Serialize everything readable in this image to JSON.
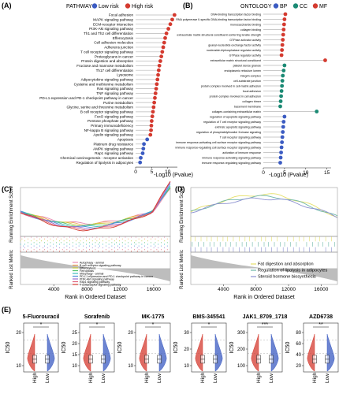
{
  "panels": {
    "A": {
      "label": "(A)",
      "legend_title": "PATHWAY",
      "legend": [
        {
          "name": "Low risk",
          "color": "#3b5bc2"
        },
        {
          "name": "High risk",
          "color": "#d43a2f"
        }
      ],
      "xlabel": "-Log10 (Pvalue)",
      "xticks": [
        "0",
        "5",
        "10"
      ],
      "xlim": [
        0,
        13
      ],
      "labels_visible_as": [
        {
          "name": "Focal adhesion",
          "group": "High risk",
          "value": 12.1
        },
        {
          "name": "MAPK signaling pathway",
          "group": "High risk",
          "value": 11.4
        },
        {
          "name": "ECM-receptor interaction",
          "group": "High risk",
          "value": 10.8
        },
        {
          "name": "PI3K-Akt signaling pathway",
          "group": "High risk",
          "value": 10.2
        },
        {
          "name": "Th1 and Th2 cell differentiation",
          "group": "High risk",
          "value": 9.6
        },
        {
          "name": "Efferocytosis",
          "group": "High risk",
          "value": 9.2
        },
        {
          "name": "Cell adhesion molecules",
          "group": "High risk",
          "value": 8.9
        },
        {
          "name": "Adherens junction",
          "group": "High risk",
          "value": 8.6
        },
        {
          "name": "T cell receptor signaling pathway",
          "group": "High risk",
          "value": 8.3
        },
        {
          "name": "Proteoglycans in cancer",
          "group": "High risk",
          "value": 8.0
        },
        {
          "name": "Protein digestion and absorption",
          "group": "High risk",
          "value": 7.7
        },
        {
          "name": "Fructose and mannose metabolism",
          "group": "High risk",
          "value": 7.4
        },
        {
          "name": "Th17 cell differentiation",
          "group": "High risk",
          "value": 7.2
        },
        {
          "name": "Lysosome",
          "group": "High risk",
          "value": 7.0
        },
        {
          "name": "Adipocytokine signaling pathway",
          "group": "High risk",
          "value": 6.8
        },
        {
          "name": "Cysteine and methionine metabolism",
          "group": "High risk",
          "value": 6.6
        },
        {
          "name": "Ras signaling pathway",
          "group": "High risk",
          "value": 6.4
        },
        {
          "name": "TNF signaling pathway",
          "group": "High risk",
          "value": 6.2
        },
        {
          "name": "PD-L1 expression and PD-1 checkpoint pathway in cancer",
          "group": "High risk",
          "value": 6.0
        },
        {
          "name": "Purine metabolism",
          "group": "High risk",
          "value": 5.8
        },
        {
          "name": "Glycine, serine and threonine metabolism",
          "group": "High risk",
          "value": 5.6
        },
        {
          "name": "B cell receptor signaling pathway",
          "group": "High risk",
          "value": 5.4
        },
        {
          "name": "FoxO signaling pathway",
          "group": "High risk",
          "value": 5.2
        },
        {
          "name": "Pentose phosphate pathway",
          "group": "High risk",
          "value": 5.0
        },
        {
          "name": "Primary immunodeficiency",
          "group": "High risk",
          "value": 4.9
        },
        {
          "name": "NF-kappa B signaling pathway",
          "group": "High risk",
          "value": 4.8
        },
        {
          "name": "Apelin signaling pathway",
          "group": "High risk",
          "value": 4.6
        },
        {
          "name": "Apoptosis",
          "group": "Low risk",
          "value": 3.6
        },
        {
          "name": "Platinum drug resistance",
          "group": "Low risk",
          "value": 2.6
        },
        {
          "name": "AMPK signaling pathway",
          "group": "Low risk",
          "value": 2.4
        },
        {
          "name": "Rap1 signaling pathway",
          "group": "Low risk",
          "value": 2.2
        },
        {
          "name": "Chemical carcinogenesis - receptor activation",
          "group": "Low risk",
          "value": 1.6
        },
        {
          "name": "Regulation of lipolysis in adipocytes",
          "group": "Low risk",
          "value": 1.4
        }
      ]
    },
    "B": {
      "label": "(B)",
      "legend_title": "ONTOLOGY",
      "legend": [
        {
          "name": "BP",
          "color": "#3b5bc2"
        },
        {
          "name": "CC",
          "color": "#1b8a74"
        },
        {
          "name": "MF",
          "color": "#d43a2f"
        }
      ],
      "xlabel": "-Log10 (Pvalue)",
      "xticks": [
        "0",
        "5",
        "10",
        "15"
      ],
      "xlim": [
        0,
        16
      ],
      "terms": [
        {
          "name": "DNA-binding transcription factor binding",
          "group": "MF",
          "value": 5.2
        },
        {
          "name": "RNA polymerase II-specific DNA-binding transcription factor binding",
          "group": "MF",
          "value": 5.0
        },
        {
          "name": "monosaccharide binding",
          "group": "MF",
          "value": 4.9
        },
        {
          "name": "collagen binding",
          "group": "MF",
          "value": 4.8
        },
        {
          "name": "extracellular matrix structural constituent conferring tensile strength",
          "group": "MF",
          "value": 4.7
        },
        {
          "name": "GTPase activator activity",
          "group": "MF",
          "value": 4.6
        },
        {
          "name": "guanyl-nucleotide exchange factor activity",
          "group": "MF",
          "value": 4.5
        },
        {
          "name": "nucleoside-triphosphatase regulator activity",
          "group": "MF",
          "value": 4.4
        },
        {
          "name": "GTPase regulator activity",
          "group": "MF",
          "value": 4.3
        },
        {
          "name": "extracellular matrix structural constituent",
          "group": "MF",
          "value": 14.6
        },
        {
          "name": "platelet dense granule",
          "group": "CC",
          "value": 5.0
        },
        {
          "name": "endoplasmic reticulum lumen",
          "group": "CC",
          "value": 4.8
        },
        {
          "name": "integrin complex",
          "group": "CC",
          "value": 4.6
        },
        {
          "name": "cell-substrate junction",
          "group": "CC",
          "value": 4.5
        },
        {
          "name": "protein complex involved in cell-matrix adhesion",
          "group": "CC",
          "value": 4.4
        },
        {
          "name": "focal adhesion",
          "group": "CC",
          "value": 4.3
        },
        {
          "name": "protein complex involved in cell adhesion",
          "group": "CC",
          "value": 4.2
        },
        {
          "name": "collagen trimer",
          "group": "CC",
          "value": 4.1
        },
        {
          "name": "basement membrane",
          "group": "CC",
          "value": 4.0
        },
        {
          "name": "collagen-containing extracellular matrix",
          "group": "CC",
          "value": 12.6
        },
        {
          "name": "regulation of apoptotic signaling pathway",
          "group": "BP",
          "value": 5.0
        },
        {
          "name": "regulation of T cell receptor signaling pathway",
          "group": "BP",
          "value": 4.8
        },
        {
          "name": "extrinsic apoptotic signaling pathway",
          "group": "BP",
          "value": 4.7
        },
        {
          "name": "regulation of phosphatidylinositol 3-kinase signaling",
          "group": "BP",
          "value": 4.6
        },
        {
          "name": "T cell receptor signaling pathway",
          "group": "BP",
          "value": 4.5
        },
        {
          "name": "immune response-activating cell surface receptor signaling pathway",
          "group": "BP",
          "value": 4.4
        },
        {
          "name": "immune response-regulating cell surface receptor signaling pathway",
          "group": "BP",
          "value": 4.3
        },
        {
          "name": "activation of immune response",
          "group": "BP",
          "value": 4.2
        },
        {
          "name": "immune response-activating signaling pathway",
          "group": "BP",
          "value": 4.1
        },
        {
          "name": "immune response-regulating signaling pathway",
          "group": "BP",
          "value": 4.0
        }
      ]
    },
    "C": {
      "label": "(C)",
      "ylabel_top": "Running Enrichment Score",
      "ylabel_bottom": "Ranked List Metric",
      "xlabel": "Rank in Ordered Dataset",
      "xticks": [
        "4000",
        "8000",
        "12000",
        "16000"
      ],
      "legend": [
        {
          "name": "Autophagy - animal",
          "color": "#e98ab3"
        },
        {
          "name": "B cell receptor signaling pathway",
          "color": "#f2a65a"
        },
        {
          "name": "Efferocytosis",
          "color": "#c9c93a"
        },
        {
          "name": "Ferroptosis",
          "color": "#4fc06b"
        },
        {
          "name": "Mitophagy - animal",
          "color": "#3bbcbc"
        },
        {
          "name": "PD-L1 expression and PD-1 checkpoint pathway in cancer",
          "color": "#4c8fd8"
        },
        {
          "name": "PI3K-Akt signaling pathway",
          "color": "#9a6fd0"
        },
        {
          "name": "Rap1 signaling pathway",
          "color": "#e0607a"
        },
        {
          "name": "T cell receptor signaling pathway",
          "color": "#d43a2f"
        }
      ]
    },
    "D": {
      "label": "(D)",
      "ylabel_top": "Running Enrichment Score",
      "ylabel_bottom": "Ranked List Metric",
      "xlabel": "Rank in Ordered Dataset",
      "xticks": [
        "4000",
        "8000",
        "12000",
        "16000"
      ],
      "legend": [
        {
          "name": "Fat digestion and absorption",
          "color": "#e6e06a"
        },
        {
          "name": "Regulation of lipolysis in adipocytes",
          "color": "#6fb7a8"
        },
        {
          "name": "Steroid hormone biosynthesis",
          "color": "#8a8fd0"
        }
      ]
    },
    "E": {
      "label": "(E)",
      "ylabel": "IC50",
      "groups": [
        "High",
        "Low"
      ],
      "colors": {
        "High": "#d43a2f",
        "Low": "#3b5bc2"
      },
      "drugs": [
        {
          "name": "5-Fluorouracil",
          "sig": "*"
        },
        {
          "name": "Sorafenib",
          "sig": "*"
        },
        {
          "name": "MK-1775",
          "sig": "*"
        },
        {
          "name": "BMS-345541",
          "sig": "*"
        },
        {
          "name": "JAK1_8709_1718",
          "sig": "***"
        },
        {
          "name": "AZD6738",
          "sig": "**"
        }
      ],
      "yticks": [
        [
          "10",
          "20"
        ],
        [
          "10",
          "15",
          "20",
          "25"
        ],
        [
          "10",
          "20"
        ],
        [
          "10",
          "20",
          "30"
        ],
        [
          "100",
          "200",
          "300"
        ],
        [
          "20",
          "40",
          "60",
          "80"
        ]
      ]
    }
  }
}
